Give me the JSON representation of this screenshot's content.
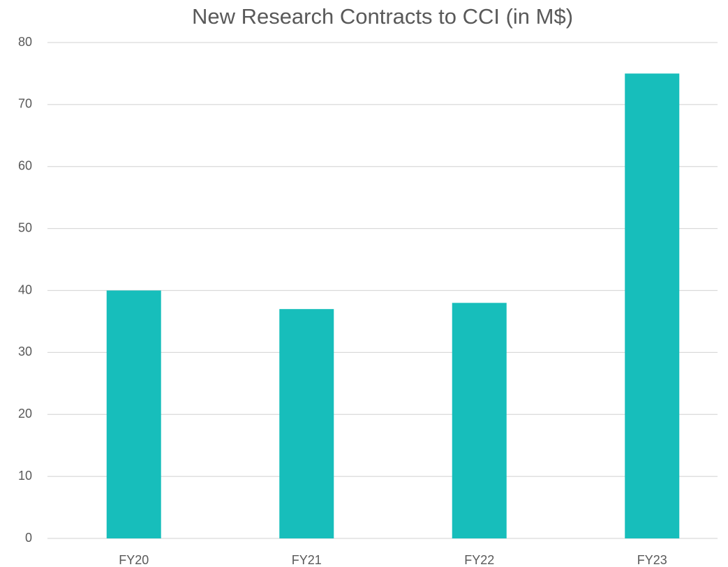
{
  "chart_data": {
    "type": "bar",
    "title": "New Research Contracts to CCI (in M$)",
    "categories": [
      "FY20",
      "FY21",
      "FY22",
      "FY23"
    ],
    "values": [
      40,
      37,
      38,
      75
    ],
    "color": "#17bebb",
    "ylim": [
      0,
      80
    ],
    "yticks": [
      0,
      10,
      20,
      30,
      40,
      50,
      60,
      70,
      80
    ],
    "grid": true
  }
}
